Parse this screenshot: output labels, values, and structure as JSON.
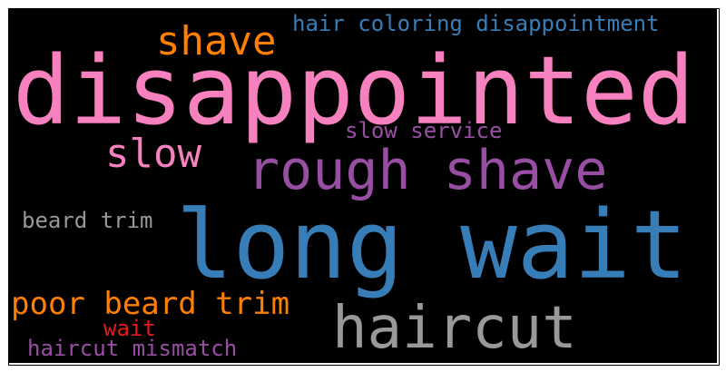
{
  "word_cloud": {
    "background": "#000000",
    "words": [
      {
        "key": "disappointed",
        "text": "disappointed",
        "color": "#f781bf"
      },
      {
        "key": "long_wait",
        "text": "long wait",
        "color": "#377eb8"
      },
      {
        "key": "rough_shave",
        "text": "rough shave",
        "color": "#984ea3"
      },
      {
        "key": "haircut",
        "text": "haircut",
        "color": "#999999"
      },
      {
        "key": "shave",
        "text": "shave",
        "color": "#ff7f00"
      },
      {
        "key": "slow",
        "text": "slow",
        "color": "#f781bf"
      },
      {
        "key": "poor_beard_trim",
        "text": "poor beard trim",
        "color": "#ff7f00"
      },
      {
        "key": "hair_coloring_disappointment",
        "text": "hair coloring disappointment",
        "color": "#377eb8"
      },
      {
        "key": "slow_service",
        "text": "slow service",
        "color": "#984ea3"
      },
      {
        "key": "beard_trim",
        "text": "beard trim",
        "color": "#999999"
      },
      {
        "key": "wait",
        "text": "wait",
        "color": "#e41a1c"
      },
      {
        "key": "haircut_mismatch",
        "text": "haircut mismatch",
        "color": "#984ea3"
      }
    ]
  }
}
